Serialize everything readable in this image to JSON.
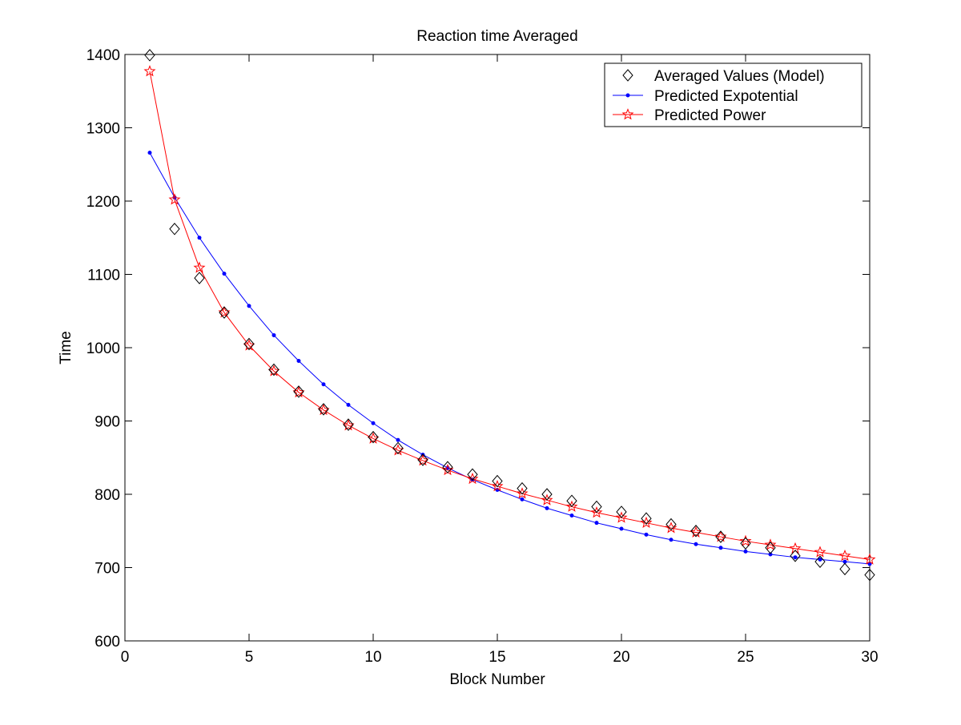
{
  "chart_data": {
    "type": "line",
    "title": "Reaction time Averaged",
    "xlabel": "Block Number",
    "ylabel": "Time",
    "xlim": [
      0,
      30
    ],
    "ylim": [
      600,
      1400
    ],
    "xticks": [
      0,
      5,
      10,
      15,
      20,
      25,
      30
    ],
    "yticks": [
      600,
      700,
      800,
      900,
      1000,
      1100,
      1200,
      1300,
      1400
    ],
    "grid": false,
    "legend_position": "top-right",
    "x": [
      1,
      2,
      3,
      4,
      5,
      6,
      7,
      8,
      9,
      10,
      11,
      12,
      13,
      14,
      15,
      16,
      17,
      18,
      19,
      20,
      21,
      22,
      23,
      24,
      25,
      26,
      27,
      28,
      29,
      30
    ],
    "series": [
      {
        "name": "Averaged Values (Model)",
        "marker": "diamond",
        "line": false,
        "color": "#000000",
        "values": [
          1399,
          1162,
          1095,
          1048,
          1005,
          970,
          940,
          916,
          895,
          878,
          863,
          847,
          837,
          827,
          818,
          808,
          800,
          791,
          783,
          776,
          767,
          759,
          750,
          742,
          733,
          727,
          716,
          708,
          698,
          690
        ]
      },
      {
        "name": "Predicted Expotential",
        "marker": "dot",
        "line": true,
        "color": "#0000ff",
        "values": [
          1266,
          1205,
          1150,
          1101,
          1057,
          1017,
          982,
          950,
          922,
          897,
          874,
          854,
          836,
          820,
          806,
          793,
          781,
          771,
          761,
          753,
          745,
          738,
          732,
          727,
          722,
          718,
          714,
          711,
          708,
          705
        ]
      },
      {
        "name": "Predicted Power",
        "marker": "star",
        "line": true,
        "color": "#ff0000",
        "values": [
          1377,
          1202,
          1109,
          1048,
          1003,
          968,
          939,
          915,
          894,
          876,
          860,
          846,
          833,
          821,
          811,
          801,
          792,
          783,
          775,
          768,
          761,
          754,
          748,
          742,
          736,
          731,
          726,
          721,
          716,
          711
        ]
      }
    ]
  }
}
